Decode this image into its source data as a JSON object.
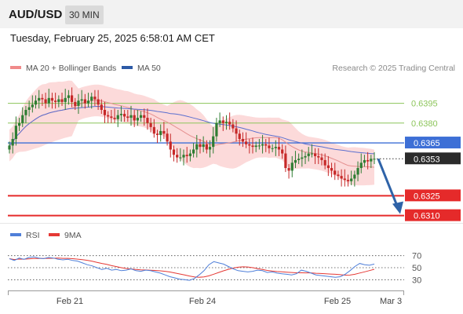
{
  "header": {
    "symbol": "AUD/USD",
    "interval": "30 MIN",
    "datetime": "Tuesday, February 25, 2025 6:58:01 AM CET"
  },
  "legend": {
    "ma20_bb": "MA 20 + Bollinger Bands",
    "ma50": "MA 50",
    "copyright": "Research © 2025 Trading Central",
    "rsi": "RSI",
    "rsi_ma": "9MA"
  },
  "colors": {
    "bull": "#2e7d32",
    "bear": "#c62828",
    "bollinger_fill": "#fcdada",
    "ma20": "#e59090",
    "ma50": "#5b6fcf",
    "level_green": "#8cc55a",
    "level_blue": "#3d6fd6",
    "level_red": "#e52a2a",
    "arrow": "#2f63a8",
    "rsi_line": "#4f7fd9",
    "rsi_ma_line": "#e53935"
  },
  "chart_data": [
    {
      "type": "candlestick",
      "x_labels": [
        "Feb 21",
        "Feb 24",
        "Feb 25",
        "Mar 3"
      ],
      "levels": [
        {
          "value": 0.6395,
          "label": "0.6395",
          "style": "resistance"
        },
        {
          "value": 0.638,
          "label": "0.6380",
          "style": "resistance"
        },
        {
          "value": 0.6365,
          "label": "0.6365",
          "style": "pivot"
        },
        {
          "value": 0.6353,
          "label": "0.6353",
          "style": "current"
        },
        {
          "value": 0.6325,
          "label": "0.6325",
          "style": "support"
        },
        {
          "value": 0.631,
          "label": "0.6310",
          "style": "support"
        }
      ],
      "ylim": [
        0.6308,
        0.6409
      ],
      "close": [
        0.6363,
        0.6368,
        0.6378,
        0.638,
        0.6386,
        0.639,
        0.6392,
        0.6394,
        0.6397,
        0.6399,
        0.6398,
        0.6395,
        0.6399,
        0.6397,
        0.6396,
        0.6398,
        0.6396,
        0.6399,
        0.6401,
        0.6396,
        0.6393,
        0.6397,
        0.6398,
        0.6395,
        0.6397,
        0.64,
        0.6398,
        0.6394,
        0.639,
        0.6386,
        0.6385,
        0.6384,
        0.6383,
        0.6386,
        0.6387,
        0.6385,
        0.6384,
        0.6386,
        0.6382,
        0.6384,
        0.6386,
        0.6384,
        0.638,
        0.6377,
        0.6372,
        0.6371,
        0.6374,
        0.6372,
        0.6366,
        0.636,
        0.6356,
        0.6354,
        0.6354,
        0.6356,
        0.6355,
        0.6357,
        0.636,
        0.6364,
        0.6362,
        0.6364,
        0.636,
        0.6362,
        0.637,
        0.638,
        0.6382,
        0.638,
        0.6381,
        0.6379,
        0.6376,
        0.6372,
        0.6368,
        0.6366,
        0.6364,
        0.6363,
        0.6362,
        0.6363,
        0.6363,
        0.6364,
        0.6363,
        0.6361,
        0.6361,
        0.6362,
        0.636,
        0.6357,
        0.6346,
        0.6344,
        0.635,
        0.6352,
        0.6353,
        0.6354,
        0.6355,
        0.6357,
        0.6357,
        0.6355,
        0.6354,
        0.6352,
        0.6348,
        0.6346,
        0.6344,
        0.6341,
        0.634,
        0.6338,
        0.6337,
        0.6336,
        0.6338,
        0.6341,
        0.6346,
        0.635,
        0.6352,
        0.6351,
        0.6353,
        0.6353
      ]
    },
    {
      "type": "line",
      "name": "RSI",
      "ylim": [
        20,
        80
      ],
      "y_ticks": [
        "70",
        "50",
        "30"
      ],
      "values": [
        65,
        62,
        66,
        64,
        67,
        68,
        66,
        65,
        67,
        66,
        64,
        63,
        64,
        62,
        61,
        58,
        55,
        53,
        50,
        47,
        49,
        46,
        47,
        45,
        46,
        48,
        45,
        44,
        46,
        45,
        43,
        41,
        38,
        35,
        33,
        31,
        30,
        29,
        32,
        38,
        45,
        55,
        60,
        58,
        56,
        52,
        48,
        45,
        44,
        43,
        44,
        46,
        45,
        42,
        43,
        41,
        40,
        39,
        38,
        40,
        46,
        44,
        41,
        38,
        37,
        36,
        35,
        34,
        35,
        39,
        45,
        52,
        57,
        55,
        54,
        56
      ]
    }
  ]
}
